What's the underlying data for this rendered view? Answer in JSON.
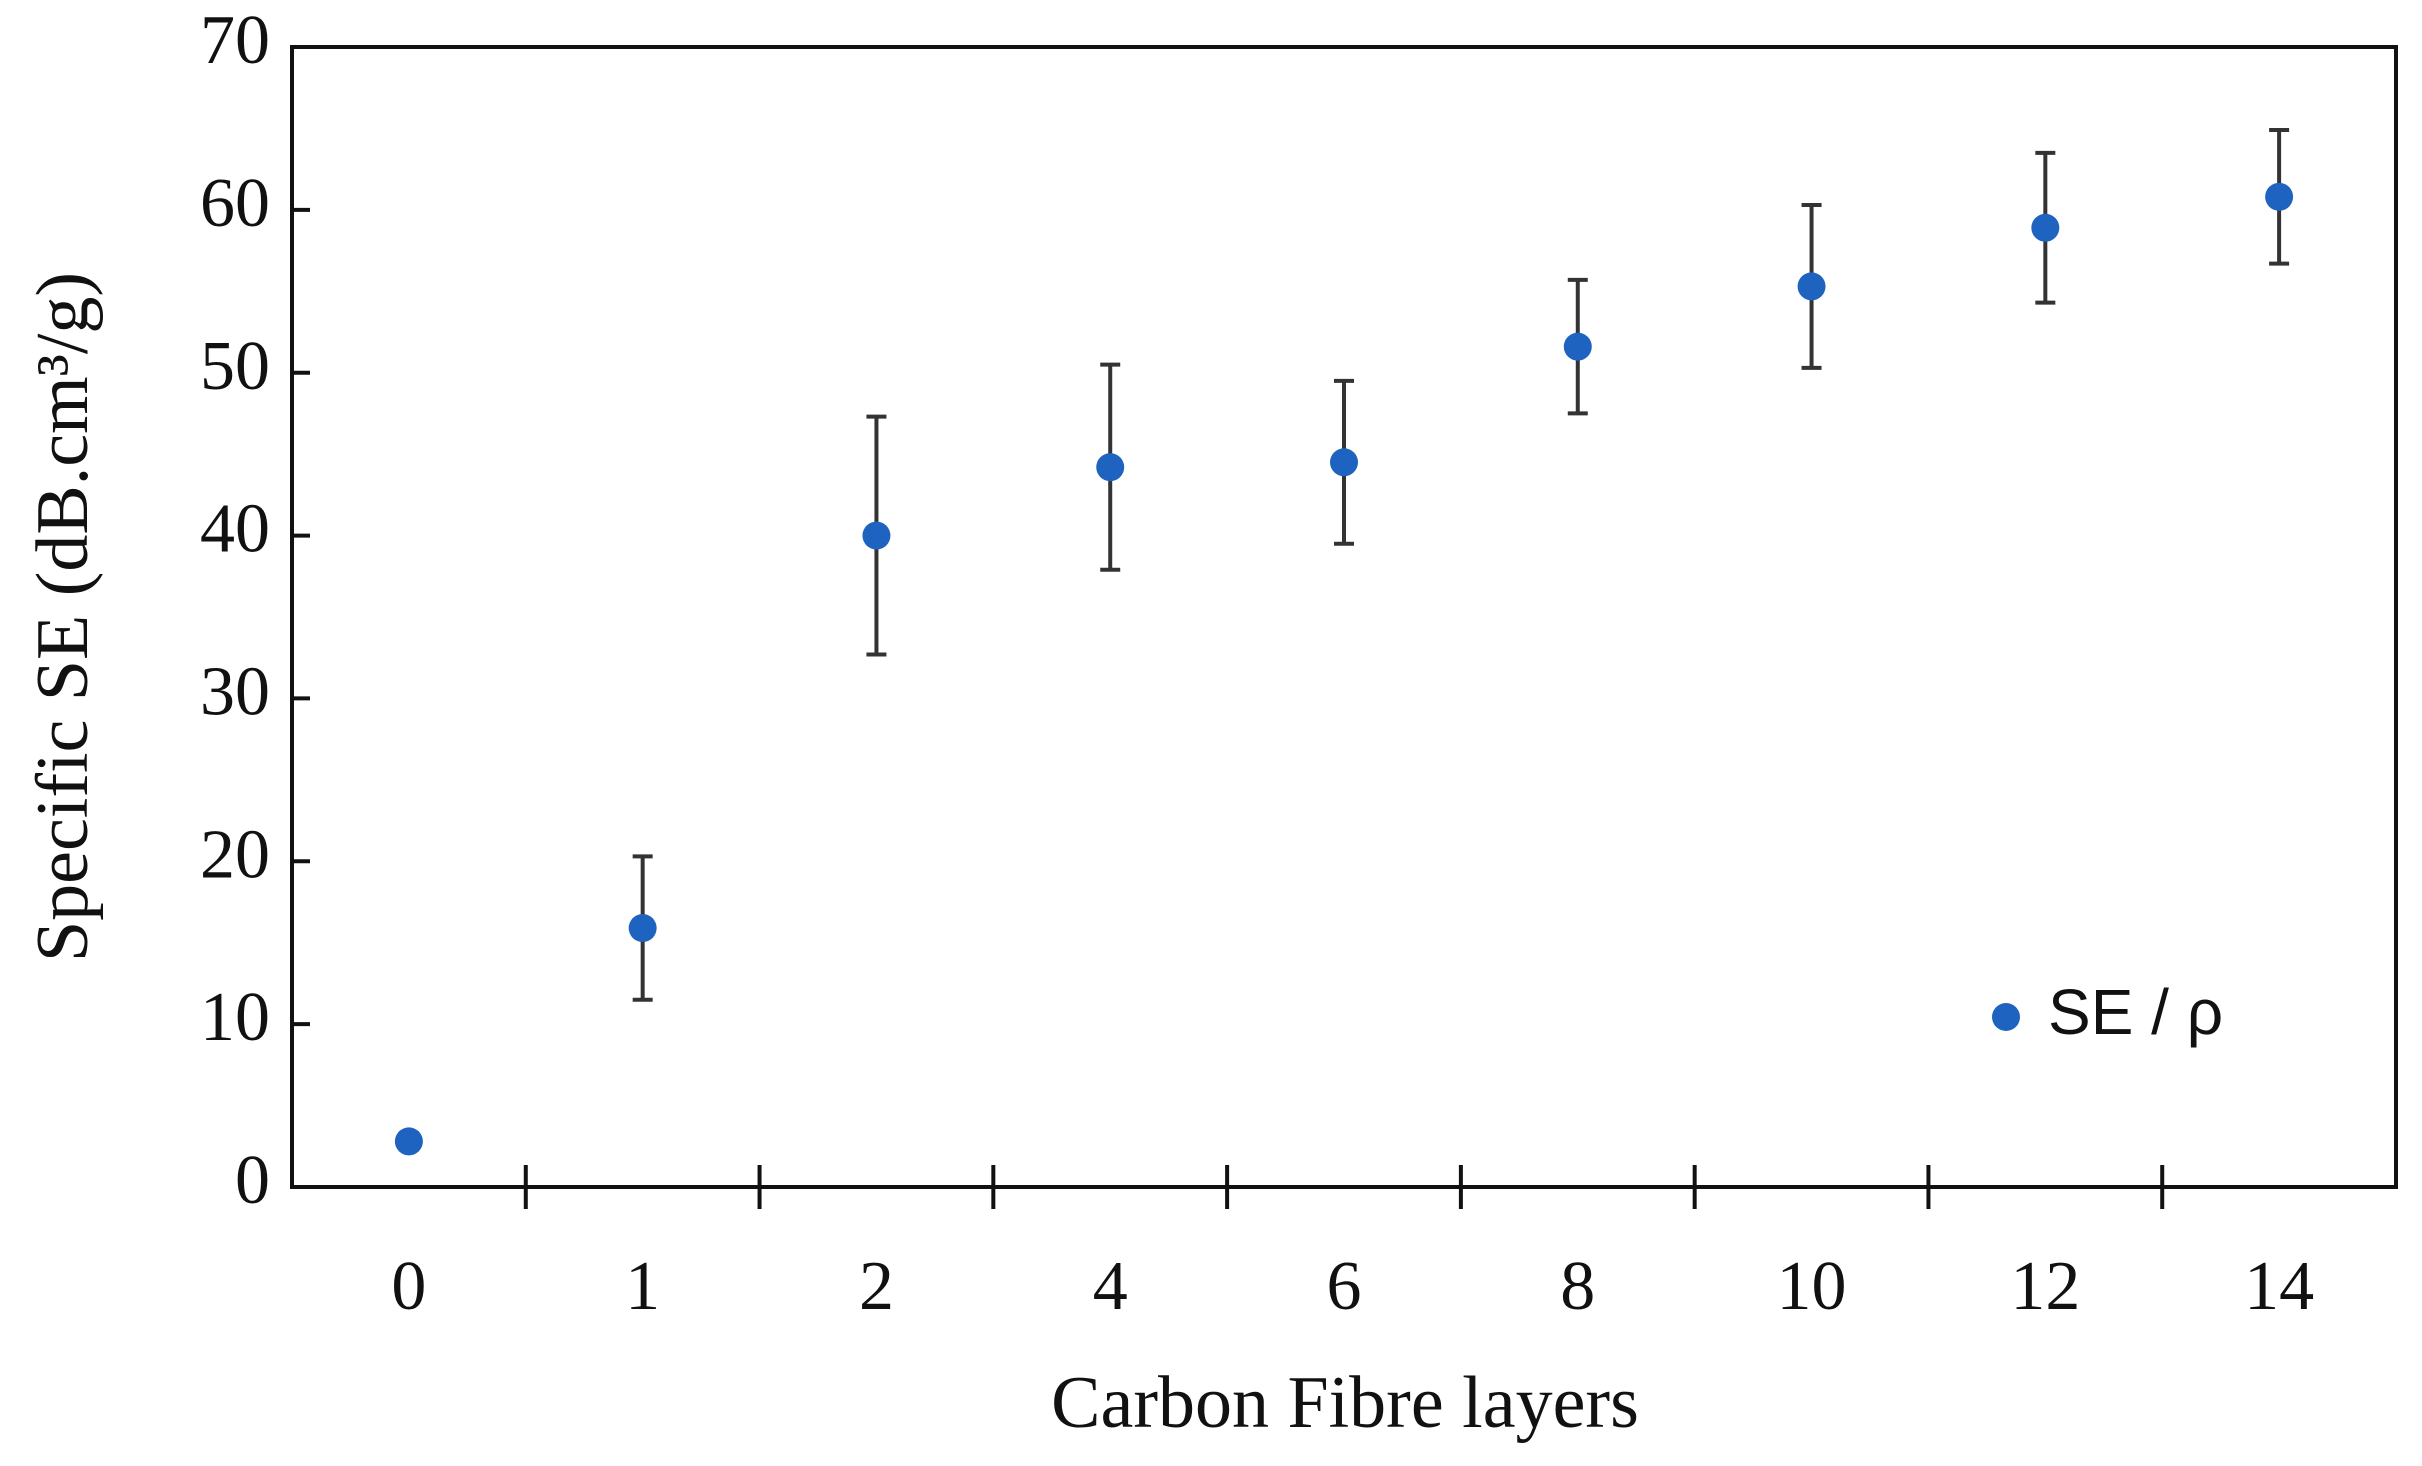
{
  "chart_data": {
    "type": "errorbar_scatter",
    "x_label": "Carbon Fibre layers",
    "y_label": "Specific SE (dB.cm³/g)",
    "categories": [
      "0",
      "1",
      "2",
      "4",
      "6",
      "8",
      "10",
      "12",
      "14"
    ],
    "series": [
      {
        "name": "SE / ρ",
        "color": "#1e63c0",
        "values": [
          2.8,
          15.9,
          40,
          44.2,
          44.5,
          51.6,
          55.3,
          58.9,
          60.8
        ],
        "errors": [
          0.5,
          4.4,
          7.3,
          6.3,
          5,
          4.1,
          5,
          4.6,
          4.1
        ]
      }
    ],
    "ylim": [
      0,
      70
    ],
    "yticks": [
      0,
      10,
      20,
      30,
      40,
      50,
      60,
      70
    ],
    "legend": "lower right"
  }
}
